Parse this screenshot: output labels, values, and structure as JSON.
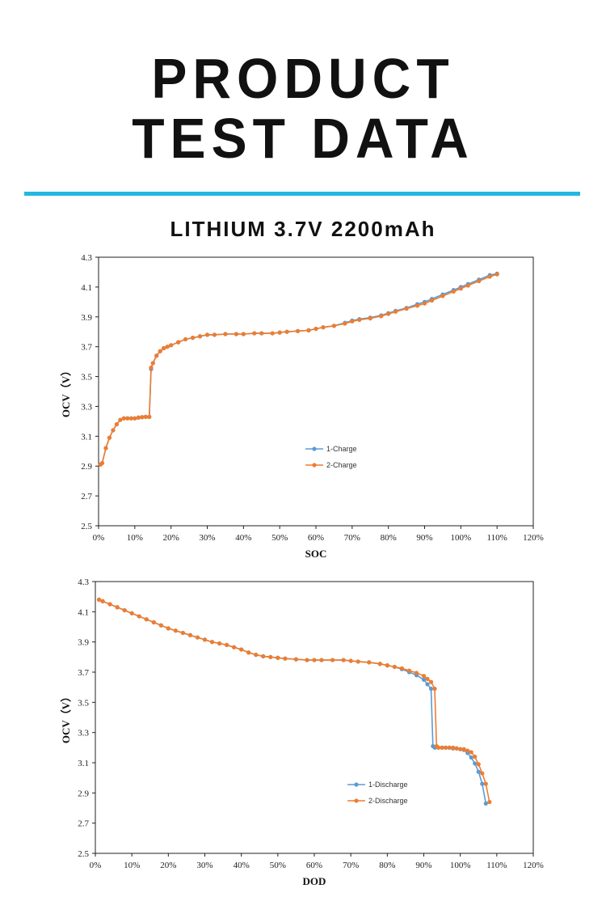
{
  "header": {
    "title_line1": "PRODUCT",
    "title_line2": "TEST DATA",
    "subtitle": "LITHIUM 3.7V 2200mAh",
    "accent_color": "#22b8e0"
  },
  "chart_data": [
    {
      "type": "line",
      "title": "",
      "xlabel": "SOC",
      "ylabel": "OCV（V）",
      "xlim": [
        0,
        120
      ],
      "ylim": [
        2.5,
        4.3
      ],
      "xticks": [
        "0%",
        "10%",
        "20%",
        "30%",
        "40%",
        "50%",
        "60%",
        "70%",
        "80%",
        "90%",
        "100%",
        "110%",
        "120%"
      ],
      "yticks": [
        "2.5",
        "2.7",
        "2.9",
        "3.1",
        "3.3",
        "3.5",
        "3.7",
        "3.9",
        "4.1",
        "4.3"
      ],
      "legend_position": "center-right",
      "series": [
        {
          "name": "1-Charge",
          "color": "#5b9bd5",
          "x": [
            0.5,
            1,
            2,
            3,
            4,
            5,
            6,
            7,
            8,
            9,
            10,
            11,
            12,
            13,
            14,
            14.5,
            15,
            16,
            17,
            18,
            19,
            20,
            22,
            24,
            26,
            28,
            30,
            32,
            35,
            38,
            40,
            43,
            45,
            48,
            50,
            52,
            55,
            58,
            60,
            62,
            65,
            68,
            70,
            72,
            75,
            78,
            80,
            82,
            85,
            88,
            90,
            92,
            95,
            98,
            100,
            102,
            105,
            108,
            110
          ],
          "y": [
            2.91,
            2.92,
            3.02,
            3.09,
            3.14,
            3.18,
            3.21,
            3.22,
            3.22,
            3.22,
            3.22,
            3.225,
            3.228,
            3.23,
            3.23,
            3.55,
            3.59,
            3.64,
            3.67,
            3.69,
            3.7,
            3.71,
            3.73,
            3.75,
            3.76,
            3.77,
            3.78,
            3.78,
            3.785,
            3.785,
            3.785,
            3.79,
            3.79,
            3.79,
            3.795,
            3.8,
            3.805,
            3.81,
            3.82,
            3.83,
            3.84,
            3.86,
            3.875,
            3.885,
            3.895,
            3.91,
            3.925,
            3.94,
            3.96,
            3.985,
            4.0,
            4.02,
            4.05,
            4.08,
            4.1,
            4.12,
            4.15,
            4.18,
            4.19
          ]
        },
        {
          "name": "2-Charge",
          "color": "#ed7d31",
          "x": [
            0.5,
            1,
            2,
            3,
            4,
            5,
            6,
            7,
            8,
            9,
            10,
            11,
            12,
            13,
            14,
            14.5,
            15,
            16,
            17,
            18,
            19,
            20,
            22,
            24,
            26,
            28,
            30,
            32,
            35,
            38,
            40,
            43,
            45,
            48,
            50,
            52,
            55,
            58,
            60,
            62,
            65,
            68,
            70,
            72,
            75,
            78,
            80,
            82,
            85,
            88,
            90,
            92,
            95,
            98,
            100,
            102,
            105,
            108,
            110
          ],
          "y": [
            2.91,
            2.92,
            3.02,
            3.09,
            3.14,
            3.18,
            3.21,
            3.22,
            3.22,
            3.22,
            3.22,
            3.225,
            3.228,
            3.23,
            3.23,
            3.56,
            3.59,
            3.64,
            3.67,
            3.69,
            3.7,
            3.71,
            3.73,
            3.75,
            3.76,
            3.77,
            3.78,
            3.78,
            3.785,
            3.785,
            3.785,
            3.79,
            3.79,
            3.79,
            3.795,
            3.8,
            3.805,
            3.81,
            3.82,
            3.83,
            3.84,
            3.855,
            3.87,
            3.88,
            3.89,
            3.905,
            3.92,
            3.935,
            3.955,
            3.975,
            3.99,
            4.01,
            4.04,
            4.07,
            4.09,
            4.11,
            4.14,
            4.17,
            4.185
          ]
        }
      ]
    },
    {
      "type": "line",
      "title": "",
      "xlabel": "DOD",
      "ylabel": "OCV（V）",
      "xlim": [
        0,
        120
      ],
      "ylim": [
        2.5,
        4.3
      ],
      "xticks": [
        "0%",
        "10%",
        "20%",
        "30%",
        "40%",
        "50%",
        "60%",
        "70%",
        "80%",
        "90%",
        "100%",
        "110%",
        "120%"
      ],
      "yticks": [
        "2.5",
        "2.7",
        "2.9",
        "3.1",
        "3.3",
        "3.5",
        "3.7",
        "3.9",
        "4.1",
        "4.3"
      ],
      "legend_position": "bottom-right",
      "series": [
        {
          "name": "1-Discharge",
          "color": "#5b9bd5",
          "x": [
            1,
            2,
            4,
            6,
            8,
            10,
            12,
            14,
            16,
            18,
            20,
            22,
            24,
            26,
            28,
            30,
            32,
            34,
            36,
            38,
            40,
            42,
            44,
            46,
            48,
            50,
            52,
            55,
            58,
            60,
            62,
            65,
            68,
            70,
            72,
            75,
            78,
            80,
            82,
            84,
            86,
            88,
            90,
            91,
            92,
            92.5,
            93,
            94,
            95,
            96,
            97,
            98,
            99,
            100,
            101,
            102,
            103,
            104,
            105,
            106,
            107
          ],
          "y": [
            4.18,
            4.17,
            4.15,
            4.13,
            4.11,
            4.09,
            4.07,
            4.05,
            4.03,
            4.01,
            3.99,
            3.975,
            3.96,
            3.945,
            3.93,
            3.915,
            3.9,
            3.89,
            3.88,
            3.865,
            3.85,
            3.83,
            3.815,
            3.805,
            3.8,
            3.795,
            3.79,
            3.785,
            3.78,
            3.78,
            3.78,
            3.78,
            3.78,
            3.775,
            3.77,
            3.765,
            3.755,
            3.745,
            3.735,
            3.72,
            3.7,
            3.68,
            3.65,
            3.62,
            3.59,
            3.21,
            3.2,
            3.2,
            3.2,
            3.2,
            3.2,
            3.195,
            3.195,
            3.19,
            3.185,
            3.165,
            3.135,
            3.095,
            3.04,
            2.96,
            2.83
          ]
        },
        {
          "name": "2-Discharge",
          "color": "#ed7d31",
          "x": [
            1,
            2,
            4,
            6,
            8,
            10,
            12,
            14,
            16,
            18,
            20,
            22,
            24,
            26,
            28,
            30,
            32,
            34,
            36,
            38,
            40,
            42,
            44,
            46,
            48,
            50,
            52,
            55,
            58,
            60,
            62,
            65,
            68,
            70,
            72,
            75,
            78,
            80,
            82,
            84,
            86,
            88,
            90,
            91,
            92,
            93,
            93.5,
            94,
            95,
            96,
            97,
            98,
            99,
            100,
            101,
            102,
            103,
            104,
            105,
            106,
            107,
            108
          ],
          "y": [
            4.18,
            4.17,
            4.15,
            4.13,
            4.11,
            4.09,
            4.07,
            4.05,
            4.03,
            4.01,
            3.99,
            3.975,
            3.96,
            3.945,
            3.93,
            3.915,
            3.9,
            3.89,
            3.88,
            3.865,
            3.85,
            3.83,
            3.815,
            3.805,
            3.8,
            3.795,
            3.79,
            3.785,
            3.78,
            3.78,
            3.78,
            3.78,
            3.78,
            3.775,
            3.77,
            3.765,
            3.755,
            3.745,
            3.735,
            3.725,
            3.71,
            3.695,
            3.675,
            3.655,
            3.635,
            3.59,
            3.21,
            3.2,
            3.2,
            3.2,
            3.2,
            3.2,
            3.195,
            3.19,
            3.19,
            3.18,
            3.17,
            3.14,
            3.09,
            3.03,
            2.96,
            2.84
          ]
        }
      ]
    }
  ]
}
